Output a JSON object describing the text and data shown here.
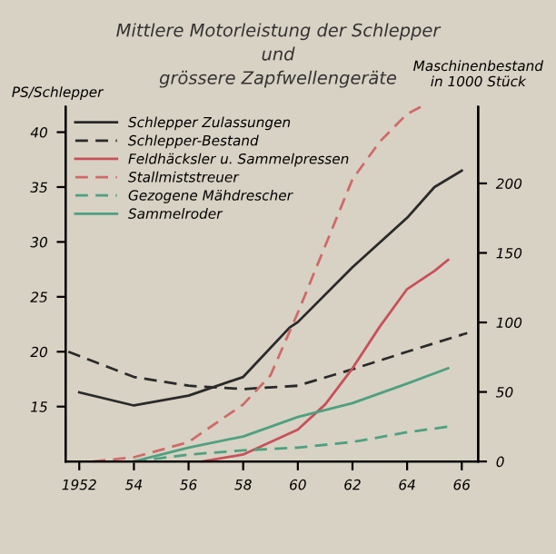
{
  "chart_data": {
    "type": "line",
    "title": "Mittlere Motorleistung der Schlepper\nund\ngrössere Zapfwellengeräte",
    "ylabel": "PS/Schlepper",
    "y2label": "Maschinenbestand\nin 1000 Stück",
    "xlim": [
      1951.5,
      1966.6
    ],
    "xticks": [
      {
        "value": 1952,
        "label": "1952"
      },
      {
        "value": 1954,
        "label": "54"
      },
      {
        "value": 1956,
        "label": "56"
      },
      {
        "value": 1958,
        "label": "58"
      },
      {
        "value": 1960,
        "label": "60"
      },
      {
        "value": 1962,
        "label": "62"
      },
      {
        "value": 1964,
        "label": "64"
      },
      {
        "value": 1966,
        "label": "66"
      }
    ],
    "ylim": [
      10,
      42.3
    ],
    "yticks": [
      15,
      20,
      25,
      30,
      35,
      40
    ],
    "y2lim": [
      0,
      255
    ],
    "y2ticks": [
      0,
      50,
      100,
      150,
      200
    ],
    "legend": "top left",
    "grid": false,
    "marker": "none",
    "series": [
      {
        "name": "Schlepper Zulassungen",
        "color": "#2a2a2a",
        "line_style": "solid",
        "x": [
          1952,
          1954,
          1956,
          1958,
          1959.7,
          1960,
          1962,
          1964,
          1965,
          1966
        ],
        "values": [
          16.3,
          15.1,
          16,
          17.7,
          22.2,
          22.7,
          27.7,
          32.2,
          35,
          36.5
        ]
      },
      {
        "name": "Schlepper-Bestand",
        "color": "#2a2a2a",
        "line_style": "dashed",
        "x": [
          1951.6,
          1954,
          1956,
          1958,
          1960,
          1962,
          1964,
          1966.2
        ],
        "values": [
          20,
          17.7,
          16.9,
          16.6,
          16.9,
          18.4,
          20,
          21.7
        ]
      },
      {
        "name": "Feldhäcksler u. Sammelpressen",
        "color": "#c8505a",
        "line_style": "solid",
        "axis": "y2",
        "x": [
          1956.5,
          1958,
          1960,
          1961,
          1962,
          1963,
          1964,
          1965,
          1965.5
        ],
        "values": [
          0,
          5,
          23,
          41,
          67,
          97,
          124,
          137,
          145
        ]
      },
      {
        "name": "Stallmiststreuer",
        "color": "#cf6a6a",
        "line_style": "dashed",
        "axis": "y2",
        "x": [
          1952.5,
          1954,
          1956,
          1958,
          1959,
          1960,
          1961,
          1962,
          1963,
          1964,
          1964.5
        ],
        "values": [
          0,
          3,
          14,
          41,
          62,
          107,
          155,
          203,
          230,
          250,
          255
        ]
      },
      {
        "name": "Gezogene Mähdrescher",
        "color": "#4fa080",
        "line_style": "dashed",
        "axis": "y2",
        "x": [
          1954,
          1956,
          1958,
          1960,
          1962,
          1964,
          1965.5
        ],
        "values": [
          0,
          5,
          8,
          10,
          14,
          21,
          25
        ]
      },
      {
        "name": "Sammelroder",
        "color": "#4fa080",
        "line_style": "solid",
        "axis": "y2",
        "x": [
          1954,
          1956,
          1958,
          1960,
          1962,
          1964,
          1965.5
        ],
        "values": [
          0,
          10,
          18,
          32,
          42,
          56,
          67
        ]
      }
    ]
  }
}
